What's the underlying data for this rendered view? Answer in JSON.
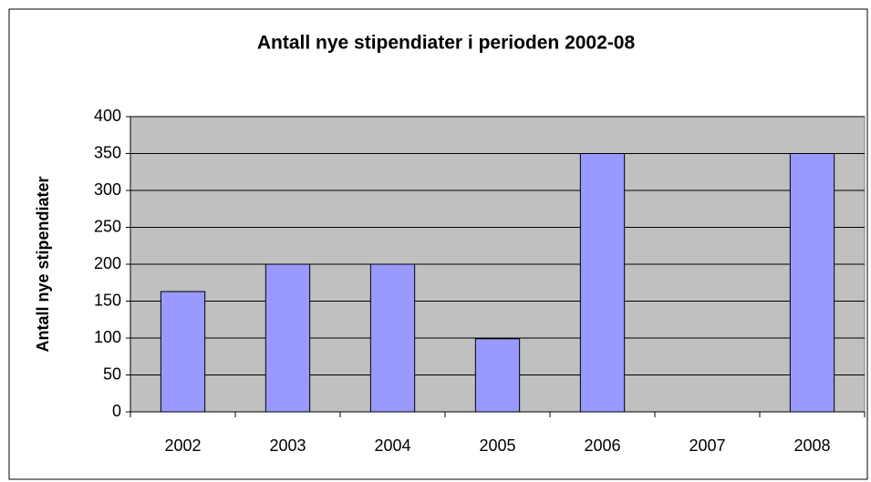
{
  "chart_data": {
    "type": "bar",
    "title": "Antall nye stipendiater i perioden 2002-08",
    "y_label": "Antall nye stipendiater",
    "categories": [
      "2002",
      "2003",
      "2004",
      "2005",
      "2006",
      "2007",
      "2008"
    ],
    "values": [
      163,
      200,
      200,
      99,
      350,
      0,
      350
    ],
    "color": "#9999ff",
    "ylim": [
      0,
      400
    ],
    "yticks": [
      0,
      50,
      100,
      150,
      200,
      250,
      300,
      350,
      400
    ],
    "grid": true
  }
}
